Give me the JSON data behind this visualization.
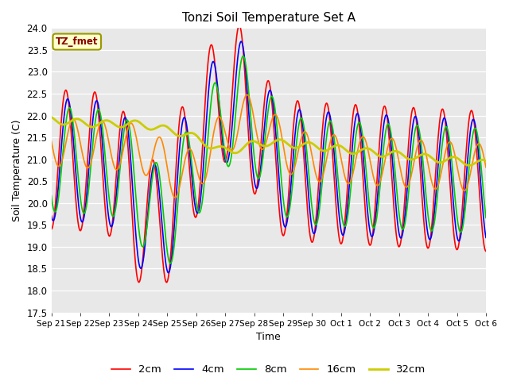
{
  "title": "Tonzi Soil Temperature Set A",
  "xlabel": "Time",
  "ylabel": "Soil Temperature (C)",
  "ylim": [
    17.5,
    24.0
  ],
  "yticks": [
    17.5,
    18.0,
    18.5,
    19.0,
    19.5,
    20.0,
    20.5,
    21.0,
    21.5,
    22.0,
    22.5,
    23.0,
    23.5,
    24.0
  ],
  "xtick_labels": [
    "Sep 21",
    "Sep 22",
    "Sep 23",
    "Sep 24",
    "Sep 25",
    "Sep 26",
    "Sep 27",
    "Sep 28",
    "Sep 29",
    "Sep 30",
    "Oct 1",
    "Oct 2",
    "Oct 3",
    "Oct 4",
    "Oct 5",
    "Oct 6"
  ],
  "colors": {
    "2cm": "#ff0000",
    "4cm": "#0000ff",
    "8cm": "#00cc00",
    "16cm": "#ff8800",
    "32cm": "#cccc00"
  },
  "line_widths": {
    "2cm": 1.2,
    "4cm": 1.2,
    "8cm": 1.2,
    "16cm": 1.2,
    "32cm": 2.0
  },
  "legend_label": "TZ_fmet",
  "plot_bg": "#e8e8e8"
}
